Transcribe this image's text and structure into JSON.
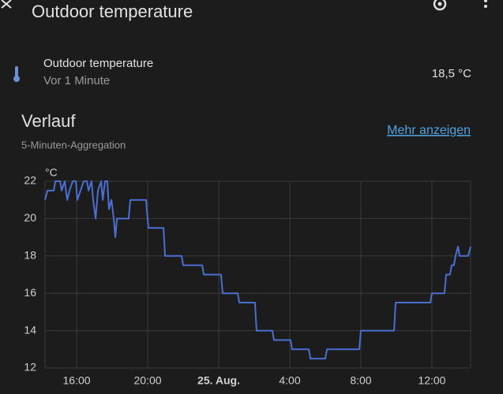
{
  "header": {
    "title": "Outdoor temperature"
  },
  "entity": {
    "name": "Outdoor temperature",
    "last_changed": "Vor 1 Minute",
    "state": "18,5 °C"
  },
  "history": {
    "title": "Verlauf",
    "subtitle": "5-Minuten-Aggregation",
    "link": "Mehr anzeigen"
  },
  "chart_data": {
    "type": "line",
    "y_unit": "°C",
    "color": "#4a6fd1",
    "grid": true,
    "xlim": [
      14.22,
      38.18
    ],
    "xticks": [
      {
        "value": 16,
        "label": "16:00"
      },
      {
        "value": 20,
        "label": "20:00"
      },
      {
        "value": 24,
        "label": "25. Aug.",
        "bold": true
      },
      {
        "value": 28,
        "label": "4:00"
      },
      {
        "value": 32,
        "label": "8:00"
      },
      {
        "value": 36,
        "label": "12:00"
      }
    ],
    "ylim": [
      12,
      22
    ],
    "yticks": [
      12,
      14,
      16,
      18,
      20,
      22
    ],
    "x": [
      14.22,
      14.36,
      14.71,
      14.8,
      15.07,
      15.16,
      15.33,
      15.47,
      15.6,
      15.78,
      15.96,
      16.04,
      16.22,
      16.4,
      16.58,
      16.67,
      16.84,
      16.93,
      17.07,
      17.2,
      17.38,
      17.47,
      17.6,
      17.73,
      17.82,
      17.96,
      18.09,
      18.18,
      18.27,
      18.93,
      19.02,
      19.91,
      20.04,
      20.89,
      20.98,
      21.91,
      22,
      23.07,
      23.16,
      24.13,
      24.22,
      25.07,
      25.16,
      26.04,
      26.13,
      27.02,
      27.11,
      28.04,
      28.13,
      29.07,
      29.16,
      30,
      30.09,
      31.91,
      32,
      33.87,
      33.96,
      35.91,
      36,
      36.71,
      36.8,
      37.02,
      37.11,
      37.24,
      37.33,
      37.47,
      37.56,
      38.04,
      38.18
    ],
    "values": [
      21,
      21.5,
      21.5,
      22,
      22,
      21.5,
      22,
      21,
      21.5,
      22,
      22,
      21,
      21.5,
      22,
      22,
      21.5,
      22,
      21,
      20,
      21.5,
      22,
      21,
      22,
      22,
      20.5,
      21,
      20,
      19,
      20,
      20,
      21,
      21,
      19.5,
      19.5,
      18,
      18,
      17.5,
      17.5,
      17,
      17,
      16,
      16,
      15.5,
      15.5,
      14,
      14,
      13.5,
      13.5,
      13,
      13,
      12.5,
      12.5,
      13,
      13,
      14,
      14,
      15.5,
      15.5,
      16,
      16,
      17,
      17,
      17.5,
      17.5,
      18,
      18.5,
      18,
      18,
      18.5
    ]
  }
}
